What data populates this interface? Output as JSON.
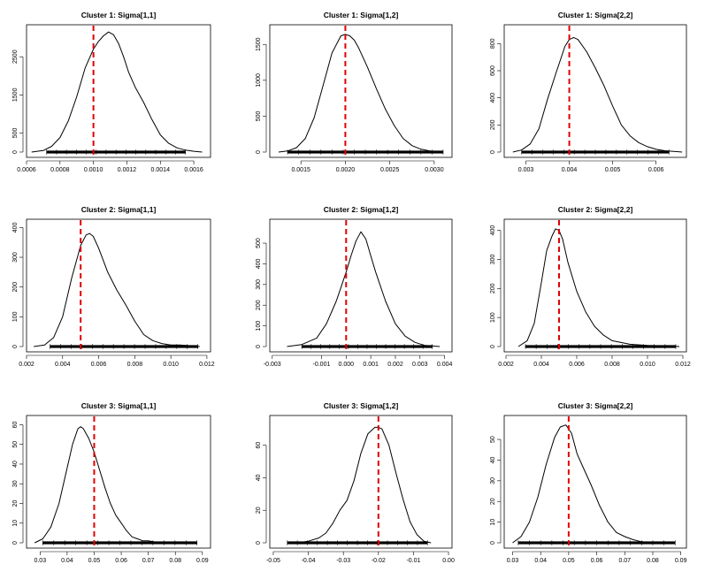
{
  "chart_data": [
    {
      "type": "line",
      "title": "Cluster 1: Sigma[1,1]",
      "xlim": [
        0.0006,
        0.0017
      ],
      "ylim": [
        0,
        3200
      ],
      "x_ticks": [
        0.0006,
        0.0008,
        0.001,
        0.0012,
        0.0014,
        0.0016
      ],
      "x_tick_labels": [
        "0.0006",
        "0.0008",
        "0.0010",
        "0.0012",
        "0.0014",
        "0.0016"
      ],
      "y_ticks": [
        0,
        500,
        1500,
        2500
      ],
      "y_tick_labels": [
        "0",
        "500",
        "1500",
        "2500"
      ],
      "reference_line": {
        "x": 0.001,
        "color": "#e00000",
        "style": "dashed"
      },
      "rug": [
        0.00072,
        0.00155
      ],
      "density": {
        "x": [
          0.00063,
          0.0007,
          0.00075,
          0.0008,
          0.00085,
          0.0009,
          0.00095,
          0.001,
          0.00103,
          0.00106,
          0.00109,
          0.00112,
          0.00115,
          0.00118,
          0.00121,
          0.00125,
          0.0013,
          0.00135,
          0.0014,
          0.00145,
          0.0015,
          0.00155,
          0.0016,
          0.00165
        ],
        "y": [
          0,
          40,
          150,
          380,
          820,
          1450,
          2200,
          2700,
          2900,
          3050,
          3150,
          3080,
          2850,
          2500,
          2100,
          1700,
          1300,
          850,
          450,
          230,
          110,
          50,
          20,
          0
        ]
      }
    },
    {
      "type": "line",
      "title": "Cluster 1: Sigma[1,2]",
      "xlim": [
        0.00115,
        0.0032
      ],
      "ylim": [
        0,
        1700
      ],
      "x_ticks": [
        0.0015,
        0.002,
        0.0025,
        0.003
      ],
      "x_tick_labels": [
        "0.0015",
        "0.0020",
        "0.0025",
        "0.0030"
      ],
      "y_ticks": [
        0,
        500,
        1000,
        1500
      ],
      "y_tick_labels": [
        "0",
        "500",
        "1000",
        "1500"
      ],
      "reference_line": {
        "x": 0.002,
        "color": "#e00000",
        "style": "dashed"
      },
      "rug": [
        0.00135,
        0.0031
      ],
      "density": {
        "x": [
          0.00125,
          0.00135,
          0.00145,
          0.00155,
          0.00165,
          0.00175,
          0.00185,
          0.00195,
          0.002,
          0.00205,
          0.0021,
          0.00215,
          0.00225,
          0.00235,
          0.00245,
          0.00255,
          0.00265,
          0.00275,
          0.00285,
          0.00295,
          0.00305
        ],
        "y": [
          0,
          15,
          60,
          190,
          480,
          930,
          1380,
          1620,
          1640,
          1620,
          1560,
          1450,
          1180,
          880,
          600,
          370,
          190,
          90,
          40,
          15,
          0
        ]
      }
    },
    {
      "type": "line",
      "title": "Cluster 1: Sigma[2,2]",
      "xlim": [
        0.0025,
        0.0067
      ],
      "ylim": [
        0,
        900
      ],
      "x_ticks": [
        0.003,
        0.004,
        0.005,
        0.006
      ],
      "x_tick_labels": [
        "0.003",
        "0.004",
        "0.005",
        "0.006"
      ],
      "y_ticks": [
        0,
        200,
        400,
        600,
        800
      ],
      "y_tick_labels": [
        "0",
        "200",
        "400",
        "600",
        "800"
      ],
      "reference_line": {
        "x": 0.004,
        "color": "#e00000",
        "style": "dashed"
      },
      "rug": [
        0.0029,
        0.0063
      ],
      "density": {
        "x": [
          0.0027,
          0.0029,
          0.0031,
          0.0033,
          0.0035,
          0.0037,
          0.0039,
          0.004,
          0.0041,
          0.0042,
          0.0044,
          0.0046,
          0.0048,
          0.005,
          0.0052,
          0.0054,
          0.0056,
          0.0058,
          0.006,
          0.0062,
          0.0064,
          0.0066
        ],
        "y": [
          0,
          15,
          60,
          170,
          390,
          590,
          780,
          830,
          845,
          830,
          740,
          620,
          490,
          340,
          200,
          120,
          70,
          40,
          20,
          10,
          5,
          0
        ]
      }
    },
    {
      "type": "line",
      "title": "Cluster 2: Sigma[1,1]",
      "xlim": [
        0.002,
        0.0122
      ],
      "ylim": [
        0,
        410
      ],
      "x_ticks": [
        0.002,
        0.004,
        0.006,
        0.008,
        0.01,
        0.012
      ],
      "x_tick_labels": [
        "0.002",
        "0.004",
        "0.006",
        "0.008",
        "0.010",
        "0.012"
      ],
      "y_ticks": [
        0,
        100,
        200,
        300,
        400
      ],
      "y_tick_labels": [
        "0",
        "100",
        "200",
        "300",
        "400"
      ],
      "reference_line": {
        "x": 0.005,
        "color": "#e00000",
        "style": "dashed"
      },
      "rug": [
        0.0033,
        0.0115
      ],
      "density": {
        "x": [
          0.0024,
          0.003,
          0.0035,
          0.004,
          0.0045,
          0.005,
          0.0053,
          0.0055,
          0.0057,
          0.006,
          0.0065,
          0.007,
          0.0075,
          0.008,
          0.0085,
          0.009,
          0.0095,
          0.01,
          0.0105,
          0.011,
          0.0116
        ],
        "y": [
          0,
          5,
          30,
          100,
          230,
          340,
          375,
          380,
          370,
          330,
          250,
          190,
          140,
          85,
          40,
          20,
          10,
          5,
          5,
          3,
          0
        ]
      }
    },
    {
      "type": "line",
      "title": "Cluster 2: Sigma[1,2]",
      "xlim": [
        -0.0031,
        0.0043
      ],
      "ylim": [
        0,
        590
      ],
      "x_ticks": [
        -0.003,
        -0.001,
        0,
        0.001,
        0.002,
        0.003,
        0.004
      ],
      "x_tick_labels": [
        "-0.003",
        "-0.001",
        "0.000",
        "0.001",
        "0.002",
        "0.003",
        "0.004"
      ],
      "y_ticks": [
        0,
        100,
        200,
        300,
        400,
        500
      ],
      "y_tick_labels": [
        "0",
        "100",
        "200",
        "300",
        "400",
        "500"
      ],
      "reference_line": {
        "x": 0,
        "color": "#e00000",
        "style": "dashed"
      },
      "rug": [
        -0.0018,
        0.0035
      ],
      "density": {
        "x": [
          -0.0024,
          -0.0018,
          -0.0012,
          -0.0008,
          -0.0004,
          0.0,
          0.0002,
          0.0004,
          0.0006,
          0.0008,
          0.001,
          0.0012,
          0.0016,
          0.002,
          0.0024,
          0.0028,
          0.0032,
          0.0038
        ],
        "y": [
          0,
          10,
          40,
          110,
          220,
          360,
          440,
          510,
          555,
          520,
          440,
          360,
          220,
          110,
          50,
          20,
          5,
          0
        ]
      }
    },
    {
      "type": "line",
      "title": "Cluster 2: Sigma[2,2]",
      "xlim": [
        0.0019,
        0.0122
      ],
      "ylim": [
        0,
        420
      ],
      "x_ticks": [
        0.002,
        0.004,
        0.006,
        0.008,
        0.01,
        0.012
      ],
      "x_tick_labels": [
        "0.002",
        "0.004",
        "0.006",
        "0.008",
        "0.010",
        "0.012"
      ],
      "y_ticks": [
        0,
        100,
        200,
        300,
        400
      ],
      "y_tick_labels": [
        "0",
        "100",
        "200",
        "300",
        "400"
      ],
      "reference_line": {
        "x": 0.005,
        "color": "#e00000",
        "style": "dashed"
      },
      "rug": [
        0.0031,
        0.0116
      ],
      "density": {
        "x": [
          0.0027,
          0.0032,
          0.0036,
          0.004,
          0.0043,
          0.0046,
          0.0048,
          0.005,
          0.0052,
          0.0055,
          0.006,
          0.0065,
          0.007,
          0.0075,
          0.008,
          0.009,
          0.01,
          0.011,
          0.0118
        ],
        "y": [
          0,
          20,
          80,
          220,
          330,
          380,
          405,
          400,
          370,
          290,
          190,
          120,
          70,
          40,
          20,
          8,
          4,
          2,
          0
        ]
      }
    },
    {
      "type": "line",
      "title": "Cluster 3: Sigma[1,1]",
      "xlim": [
        0.025,
        0.093
      ],
      "ylim": [
        0,
        62
      ],
      "x_ticks": [
        0.03,
        0.04,
        0.05,
        0.06,
        0.07,
        0.08,
        0.09
      ],
      "x_tick_labels": [
        "0.03",
        "0.04",
        "0.05",
        "0.06",
        "0.07",
        "0.08",
        "0.09"
      ],
      "y_ticks": [
        0,
        10,
        20,
        30,
        40,
        50,
        60
      ],
      "y_tick_labels": [
        "0",
        "10",
        "20",
        "30",
        "40",
        "50",
        "60"
      ],
      "reference_line": {
        "x": 0.05,
        "color": "#e00000",
        "style": "dashed"
      },
      "rug": [
        0.031,
        0.088
      ],
      "density": {
        "x": [
          0.028,
          0.031,
          0.034,
          0.037,
          0.04,
          0.042,
          0.044,
          0.045,
          0.046,
          0.048,
          0.05,
          0.052,
          0.054,
          0.056,
          0.058,
          0.06,
          0.062,
          0.064,
          0.066,
          0.068,
          0.07,
          0.072,
          0.075
        ],
        "y": [
          0,
          2,
          8,
          20,
          38,
          50,
          58,
          59,
          58,
          53,
          46,
          37,
          28,
          20,
          14,
          10,
          6,
          3,
          2,
          1,
          1,
          0.5,
          0
        ]
      }
    },
    {
      "type": "line",
      "title": "Cluster 3: Sigma[1,2]",
      "xlim": [
        -0.051,
        0.001
      ],
      "ylim": [
        0,
        75
      ],
      "x_ticks": [
        -0.05,
        -0.04,
        -0.03,
        -0.02,
        -0.01,
        0
      ],
      "x_tick_labels": [
        "-0.05",
        "-0.04",
        "-0.03",
        "-0.02",
        "-0.01",
        "0.00"
      ],
      "y_ticks": [
        0,
        20,
        40,
        60
      ],
      "y_tick_labels": [
        "0",
        "20",
        "40",
        "60"
      ],
      "reference_line": {
        "x": -0.02,
        "color": "#e00000",
        "style": "dashed"
      },
      "rug": [
        -0.046,
        -0.006
      ],
      "density": {
        "x": [
          -0.043,
          -0.04,
          -0.037,
          -0.035,
          -0.033,
          -0.031,
          -0.029,
          -0.027,
          -0.025,
          -0.023,
          -0.021,
          -0.02,
          -0.019,
          -0.017,
          -0.015,
          -0.013,
          -0.011,
          -0.009,
          -0.007,
          -0.005
        ],
        "y": [
          0,
          1,
          3,
          6,
          12,
          20,
          26,
          38,
          55,
          67,
          71,
          71,
          70,
          60,
          43,
          27,
          13,
          5,
          1,
          0
        ]
      }
    },
    {
      "type": "line",
      "title": "Cluster 3: Sigma[2,2]",
      "xlim": [
        0.027,
        0.092
      ],
      "ylim": [
        0,
        59
      ],
      "x_ticks": [
        0.03,
        0.04,
        0.05,
        0.06,
        0.07,
        0.08,
        0.09
      ],
      "x_tick_labels": [
        "0.03",
        "0.04",
        "0.05",
        "0.06",
        "0.07",
        "0.08",
        "0.09"
      ],
      "y_ticks": [
        0,
        10,
        20,
        30,
        40,
        50
      ],
      "y_tick_labels": [
        "0",
        "10",
        "20",
        "30",
        "40",
        "50"
      ],
      "reference_line": {
        "x": 0.05,
        "color": "#e00000",
        "style": "dashed"
      },
      "rug": [
        0.032,
        0.088
      ],
      "density": {
        "x": [
          0.03,
          0.033,
          0.036,
          0.039,
          0.042,
          0.045,
          0.047,
          0.049,
          0.051,
          0.053,
          0.055,
          0.058,
          0.061,
          0.064,
          0.067,
          0.07,
          0.073,
          0.076,
          0.08
        ],
        "y": [
          0,
          3,
          10,
          22,
          38,
          51,
          56,
          57,
          53,
          43,
          37,
          28,
          18,
          10,
          5,
          3,
          1.5,
          0.5,
          0
        ]
      }
    }
  ]
}
